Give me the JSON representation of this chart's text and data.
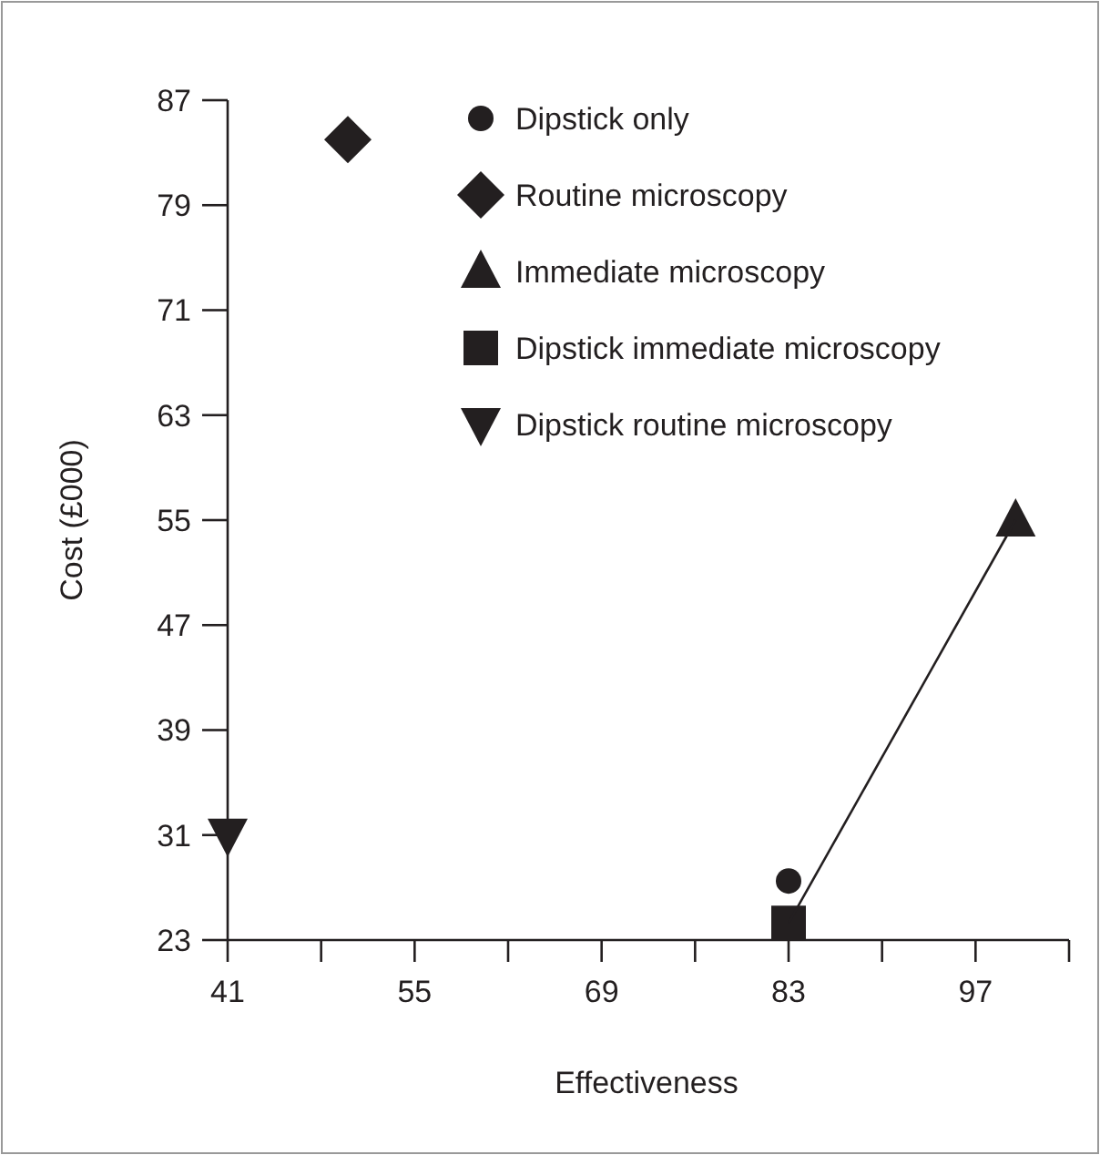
{
  "chart_data": {
    "type": "scatter",
    "xlabel": "Effectiveness",
    "ylabel": "Cost (£000)",
    "xlim": [
      41,
      104
    ],
    "ylim": [
      23,
      87
    ],
    "xticks": [
      41,
      {
        "value": 48,
        "label": null
      },
      55,
      {
        "value": 62,
        "label": null
      },
      69,
      {
        "value": 76,
        "label": null
      },
      83,
      {
        "value": 90,
        "label": null
      },
      97,
      {
        "value": 104,
        "label": null
      }
    ],
    "yticks": [
      23,
      31,
      39,
      47,
      55,
      63,
      71,
      79,
      87
    ],
    "legend": "top right",
    "grid": false,
    "series": [
      {
        "name": "Dipstick only",
        "color": "#231f20",
        "marker": "circle",
        "x": [
          83
        ],
        "values": [
          27.5
        ]
      },
      {
        "name": "Routine microscopy",
        "color": "#231f20",
        "marker": "diamond",
        "x": [
          50
        ],
        "values": [
          84
        ]
      },
      {
        "name": "Immediate microscopy",
        "color": "#231f20",
        "marker": "triangle",
        "x": [
          100
        ],
        "values": [
          55
        ]
      },
      {
        "name": "Dipstick immediate microscopy",
        "color": "#231f20",
        "marker": "square",
        "x": [
          83
        ],
        "values": [
          24.3
        ]
      },
      {
        "name": "Dipstick routine microscopy",
        "color": "#231f20",
        "marker": "triangle-down",
        "x": [
          41
        ],
        "values": [
          31
        ]
      },
      {
        "type": "line",
        "color": "#231f20",
        "line_style": "solid",
        "x": [
          83,
          100
        ],
        "values": [
          24.3,
          55
        ]
      }
    ]
  }
}
